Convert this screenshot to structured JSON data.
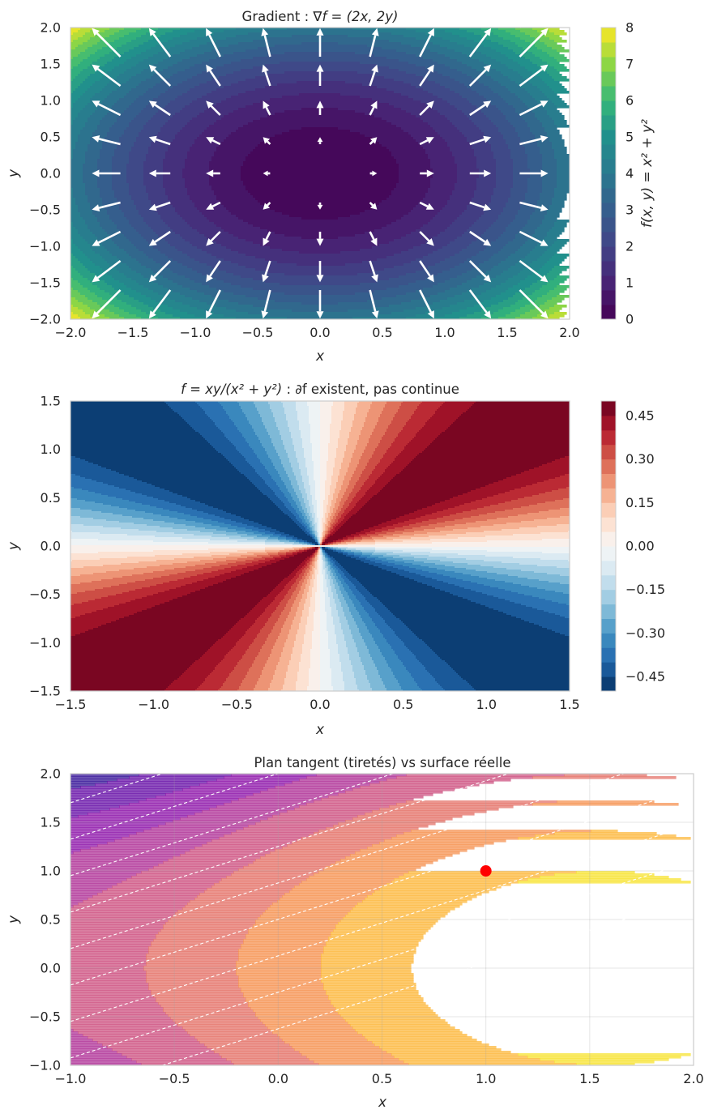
{
  "chart_data": [
    {
      "type": "contour-quiver",
      "title_plain": "Gradient : ",
      "title_math": "∇f = (2x, 2y)",
      "xlabel": "x",
      "ylabel": "y",
      "xlim": [
        -2,
        2
      ],
      "ylim": [
        -2,
        2
      ],
      "function": "x^2 + y^2",
      "colormap": "viridis",
      "levels": [
        0,
        0.4,
        0.8,
        1.2,
        1.6,
        2.0,
        2.4,
        2.8,
        3.2,
        3.6,
        4.0,
        4.4,
        4.8,
        5.2,
        5.6,
        6.0,
        6.4,
        6.8,
        7.2,
        7.6,
        8.0
      ],
      "xticks": [
        "−2.0",
        "−1.5",
        "−1.0",
        "−0.5",
        "0.0",
        "0.5",
        "1.0",
        "1.5",
        "2.0"
      ],
      "yticks": [
        "−2.0",
        "−1.5",
        "−1.0",
        "−0.5",
        "0.0",
        "0.5",
        "1.0",
        "1.5",
        "2.0"
      ],
      "colorbar": {
        "label": "f(x, y) = x² + y²",
        "ticks": [
          "0",
          "1",
          "2",
          "3",
          "4",
          "5",
          "6",
          "7",
          "8"
        ],
        "range": [
          0,
          8
        ]
      },
      "quiver": {
        "grid_x": [
          -2.0,
          -1.6,
          -1.2,
          -0.8,
          -0.4,
          0.0,
          0.4,
          0.8,
          1.2,
          1.6,
          2.0
        ],
        "grid_y": [
          -2.0,
          -1.6,
          -1.2,
          -0.8,
          -0.4,
          0.0,
          0.4,
          0.8,
          1.2,
          1.6,
          2.0
        ],
        "vector": "(2x, 2y)",
        "color": "#ffffff"
      }
    },
    {
      "type": "contour",
      "title_math": "f = xy/(x² + y²)",
      "title_plain": " : ∂f existent, pas continue",
      "xlabel": "x",
      "ylabel": "y",
      "xlim": [
        -1.5,
        1.5
      ],
      "ylim": [
        -1.5,
        1.5
      ],
      "function": "xy/(x^2 + y^2)",
      "colormap": "RdBu_r",
      "levels": [
        -0.5,
        -0.45,
        -0.4,
        -0.35,
        -0.3,
        -0.25,
        -0.2,
        -0.15,
        -0.1,
        -0.05,
        0.0,
        0.05,
        0.1,
        0.15,
        0.2,
        0.25,
        0.3,
        0.35,
        0.4,
        0.45,
        0.5
      ],
      "xticks": [
        "−1.5",
        "−1.0",
        "−0.5",
        "0.0",
        "0.5",
        "1.0",
        "1.5"
      ],
      "yticks": [
        "−1.5",
        "−1.0",
        "−0.5",
        "0.0",
        "0.5",
        "1.0",
        "1.5"
      ],
      "colorbar": {
        "ticks": [
          "0.45",
          "0.30",
          "0.15",
          "0.00",
          "−0.15",
          "−0.30",
          "−0.45"
        ],
        "range": [
          -0.5,
          0.5
        ]
      }
    },
    {
      "type": "contour",
      "title": "Plan tangent (tiretés) vs surface réelle",
      "xlabel": "x",
      "ylabel": "y",
      "xlim": [
        -1,
        2
      ],
      "ylim": [
        -1,
        2
      ],
      "function": "sin(x) − 0.4 y²  (reconstructed surface)",
      "colormap": "plasma",
      "fill_alpha": 0.7,
      "levels": [
        -2.6,
        -2.2,
        -1.8,
        -1.4,
        -1.0,
        -0.6,
        -0.2,
        0.2,
        0.6,
        1.0
      ],
      "tangent_point": {
        "x": 1.0,
        "y": 1.0,
        "color": "#ff0000"
      },
      "tangent_plane": {
        "style": "dashed",
        "color": "#ffffff",
        "levels": [
          -2.4,
          -2.1,
          -1.8,
          -1.5,
          -1.2,
          -0.9,
          -0.6,
          -0.3,
          0.0,
          0.3,
          0.6,
          0.9,
          1.2
        ]
      },
      "xticks": [
        "−1.0",
        "−0.5",
        "0.0",
        "0.5",
        "1.0",
        "1.5",
        "2.0"
      ],
      "yticks": [
        "−1.0",
        "−0.5",
        "0.0",
        "0.5",
        "1.0",
        "1.5",
        "2.0"
      ]
    }
  ]
}
